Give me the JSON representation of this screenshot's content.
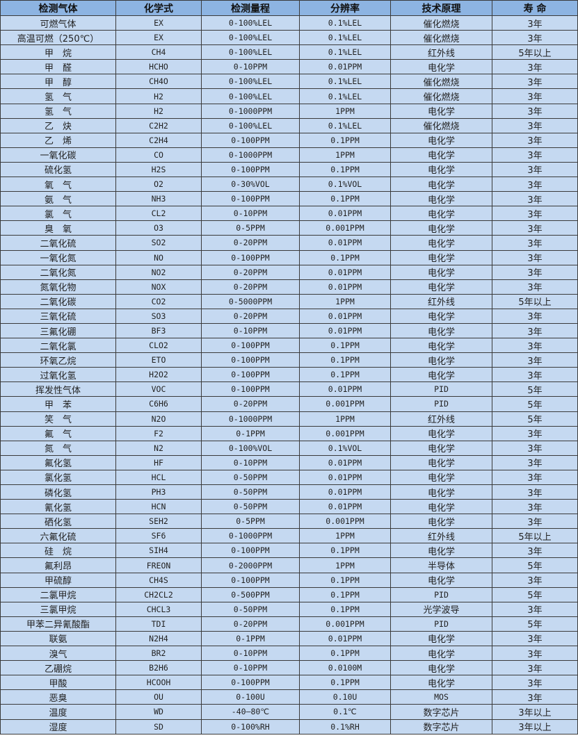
{
  "headers": [
    "检测气体",
    "化学式",
    "检测量程",
    "分辨率",
    "技术原理",
    "寿 命"
  ],
  "rows": [
    [
      "可燃气体",
      "EX",
      "0-100%LEL",
      "0.1%LEL",
      "催化燃烧",
      "3年"
    ],
    [
      "高温可燃（250℃）",
      "EX",
      "0-100%LEL",
      "0.1%LEL",
      "催化燃烧",
      "3年"
    ],
    [
      "甲　烷",
      "CH4",
      "0-100%LEL",
      "0.1%LEL",
      "红外线",
      "5年以上"
    ],
    [
      "甲　醛",
      "HCHO",
      "0-10PPM",
      "0.01PPM",
      "电化学",
      "3年"
    ],
    [
      "甲　醇",
      "CH4O",
      "0-100%LEL",
      "0.1%LEL",
      "催化燃烧",
      "3年"
    ],
    [
      "氢　气",
      "H2",
      "0-100%LEL",
      "0.1%LEL",
      "催化燃烧",
      "3年"
    ],
    [
      "氢　气",
      "H2",
      "0-1000PPM",
      "1PPM",
      "电化学",
      "3年"
    ],
    [
      "乙　炔",
      "C2H2",
      "0-100%LEL",
      "0.1%LEL",
      "催化燃烧",
      "3年"
    ],
    [
      "乙　烯",
      "C2H4",
      "0-100PPM",
      "0.1PPM",
      "电化学",
      "3年"
    ],
    [
      "一氧化碳",
      "CO",
      "0-1000PPM",
      "1PPM",
      "电化学",
      "3年"
    ],
    [
      "硫化氢",
      "H2S",
      "0-100PPM",
      "0.1PPM",
      "电化学",
      "3年"
    ],
    [
      "氧　气",
      "O2",
      "0-30%VOL",
      "0.1%VOL",
      "电化学",
      "3年"
    ],
    [
      "氨　气",
      "NH3",
      "0-100PPM",
      "0.1PPM",
      "电化学",
      "3年"
    ],
    [
      "氯　气",
      "CL2",
      "0-10PPM",
      "0.01PPM",
      "电化学",
      "3年"
    ],
    [
      "臭　氧",
      "O3",
      "0-5PPM",
      "0.001PPM",
      "电化学",
      "3年"
    ],
    [
      "二氧化硫",
      "SO2",
      "0-20PPM",
      "0.01PPM",
      "电化学",
      "3年"
    ],
    [
      "一氧化氮",
      "NO",
      "0-100PPM",
      "0.1PPM",
      "电化学",
      "3年"
    ],
    [
      "二氧化氮",
      "NO2",
      "0-20PPM",
      "0.01PPM",
      "电化学",
      "3年"
    ],
    [
      "氮氧化物",
      "NOX",
      "0-20PPM",
      "0.01PPM",
      "电化学",
      "3年"
    ],
    [
      "二氧化碳",
      "CO2",
      "0-5000PPM",
      "1PPM",
      "红外线",
      "5年以上"
    ],
    [
      "三氧化硫",
      "SO3",
      "0-20PPM",
      "0.01PPM",
      "电化学",
      "3年"
    ],
    [
      "三氟化硼",
      "BF3",
      "0-10PPM",
      "0.01PPM",
      "电化学",
      "3年"
    ],
    [
      "二氧化氯",
      "CLO2",
      "0-100PPM",
      "0.1PPM",
      "电化学",
      "3年"
    ],
    [
      "环氧乙烷",
      "ETO",
      "0-100PPM",
      "0.1PPM",
      "电化学",
      "3年"
    ],
    [
      "过氧化氢",
      "H2O2",
      "0-100PPM",
      "0.1PPM",
      "电化学",
      "3年"
    ],
    [
      "挥发性气体",
      "VOC",
      "0-100PPM",
      "0.01PPM",
      "PID",
      "5年"
    ],
    [
      "甲　苯",
      "C6H6",
      "0-20PPM",
      "0.001PPM",
      "PID",
      "5年"
    ],
    [
      "笑　气",
      "N2O",
      "0-1000PPM",
      "1PPM",
      "红外线",
      "5年"
    ],
    [
      "氟　气",
      "F2",
      "0-1PPM",
      "0.001PPM",
      "电化学",
      "3年"
    ],
    [
      "氮　气",
      "N2",
      "0-100%VOL",
      "0.1%VOL",
      "电化学",
      "3年"
    ],
    [
      "氟化氢",
      "HF",
      "0-10PPM",
      "0.01PPM",
      "电化学",
      "3年"
    ],
    [
      "氯化氢",
      "HCL",
      "0-50PPM",
      "0.01PPM",
      "电化学",
      "3年"
    ],
    [
      "磷化氢",
      "PH3",
      "0-50PPM",
      "0.01PPM",
      "电化学",
      "3年"
    ],
    [
      "氰化氢",
      "HCN",
      "0-50PPM",
      "0.01PPM",
      "电化学",
      "3年"
    ],
    [
      "硒化氢",
      "SEH2",
      "0-5PPM",
      "0.001PPM",
      "电化学",
      "3年"
    ],
    [
      "六氟化硫",
      "SF6",
      "0-1000PPM",
      "1PPM",
      "红外线",
      "5年以上"
    ],
    [
      "硅　烷",
      "SIH4",
      "0-100PPM",
      "0.1PPM",
      "电化学",
      "3年"
    ],
    [
      "氟利昂",
      "FREON",
      "0-2000PPM",
      "1PPM",
      "半导体",
      "5年"
    ],
    [
      "甲硫醇",
      "CH4S",
      "0-100PPM",
      "0.1PPM",
      "电化学",
      "3年"
    ],
    [
      "二氯甲烷",
      "CH2CL2",
      "0-500PPM",
      "0.1PPM",
      "PID",
      "5年"
    ],
    [
      "三氯甲烷",
      "CHCL3",
      "0-50PPM",
      "0.1PPM",
      "光学波导",
      "3年"
    ],
    [
      "甲苯二异氰酸酯",
      "TDI",
      "0-20PPM",
      "0.001PPM",
      "PID",
      "5年"
    ],
    [
      "联氨",
      "N2H4",
      "0-1PPM",
      "0.01PPM",
      "电化学",
      "3年"
    ],
    [
      "溴气",
      "BR2",
      "0-10PPM",
      "0.1PPM",
      "电化学",
      "3年"
    ],
    [
      "乙硼烷",
      "B2H6",
      "0-10PPM",
      "0.0100M",
      "电化学",
      "3年"
    ],
    [
      "甲酸",
      "HCOOH",
      "0-100PPM",
      "0.1PPM",
      "电化学",
      "3年"
    ],
    [
      "恶臭",
      "OU",
      "0-100U",
      "0.10U",
      "MOS",
      "3年"
    ],
    [
      "温度",
      "WD",
      "-40—80℃",
      "0.1℃",
      "数字芯片",
      "3年以上"
    ],
    [
      "湿度",
      "SD",
      "0-100%RH",
      "0.1%RH",
      "数字芯片",
      "3年以上"
    ]
  ],
  "colors": {
    "header_bg": "#8db4e2",
    "row_bg": "#c5d9f1",
    "border": "#3a3a3a"
  }
}
